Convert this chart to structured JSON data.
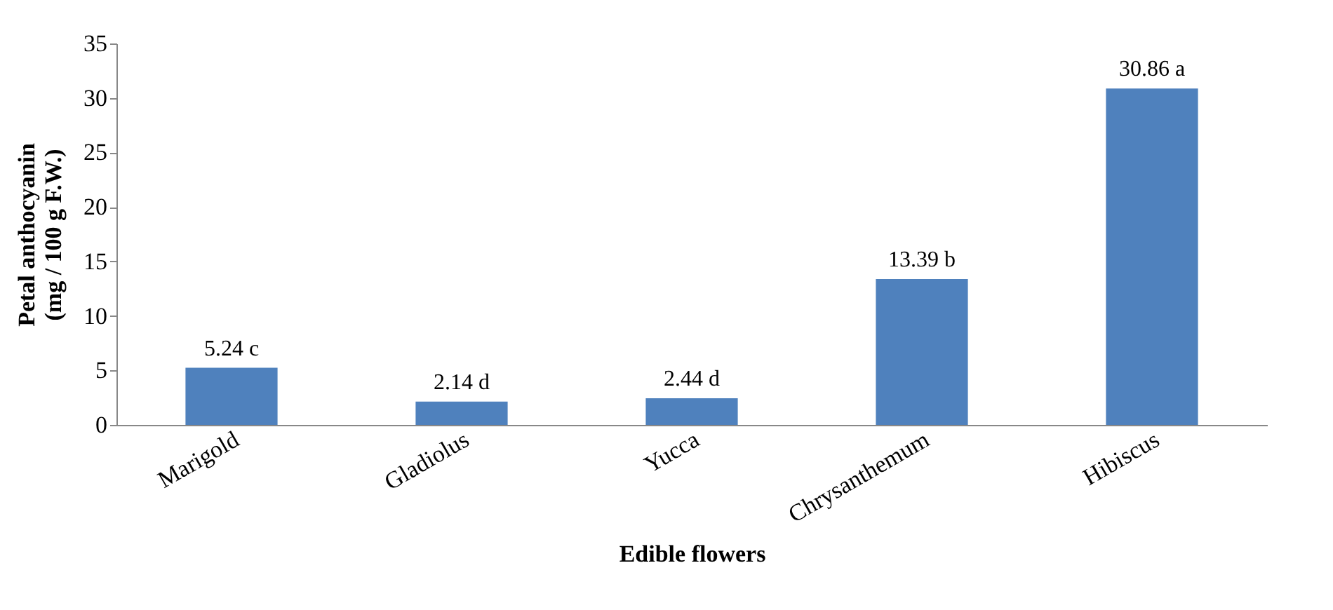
{
  "chart_data": {
    "type": "bar",
    "xlabel": "Edible flowers",
    "ylabel": "Petal anthocyanin\n(mg / 100 g F.W.)",
    "categories": [
      "Marigold",
      "Gladiolus",
      "Yucca",
      "Chrysanthemum",
      "Hibiscus"
    ],
    "values": [
      5.24,
      2.14,
      2.44,
      13.39,
      30.86
    ],
    "color": "#4f81bd",
    "value_labels": [
      "5.24 c",
      "2.14 d",
      "2.44 d",
      "13.39 b",
      "30.86 a"
    ],
    "ylim": [
      0,
      35
    ],
    "yticks": [
      0,
      5,
      10,
      15,
      20,
      25,
      30,
      35
    ],
    "grid": false
  }
}
